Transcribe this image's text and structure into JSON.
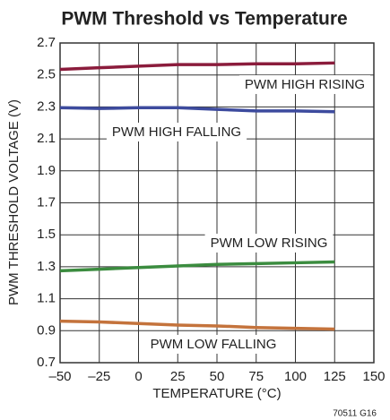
{
  "chart_data": {
    "type": "line",
    "title": "PWM Threshold vs Temperature",
    "x_label": "TEMPERATURE (°C)",
    "y_label": "PWM THRESHOLD VOLTAGE (V)",
    "footnote": "70511 G16",
    "x": [
      -50,
      -25,
      0,
      25,
      50,
      75,
      100,
      125
    ],
    "series": [
      {
        "name": "PWM HIGH RISING",
        "color": "#8b1c3c",
        "values": [
          2.535,
          2.545,
          2.555,
          2.565,
          2.565,
          2.57,
          2.57,
          2.575
        ]
      },
      {
        "name": "PWM HIGH FALLING",
        "color": "#3d4b9e",
        "values": [
          2.295,
          2.29,
          2.295,
          2.295,
          2.285,
          2.275,
          2.275,
          2.27
        ]
      },
      {
        "name": "PWM LOW RISING",
        "color": "#3b8c3f",
        "values": [
          1.275,
          1.285,
          1.295,
          1.305,
          1.315,
          1.32,
          1.325,
          1.33
        ]
      },
      {
        "name": "PWM LOW FALLING",
        "color": "#c4733c",
        "values": [
          0.96,
          0.955,
          0.945,
          0.935,
          0.93,
          0.92,
          0.915,
          0.91
        ]
      }
    ],
    "xlim": [
      -50,
      150
    ],
    "xticks": [
      {
        "value": -50,
        "label": "–50"
      },
      {
        "value": -25,
        "label": "–25"
      },
      0,
      25,
      50,
      75,
      100,
      125,
      150
    ],
    "ylim": [
      0.7,
      2.7
    ],
    "yticks": [
      0.7,
      0.9,
      1.1,
      1.3,
      1.5,
      1.7,
      1.9,
      2.1,
      2.3,
      2.5,
      2.7
    ],
    "grid": true
  }
}
